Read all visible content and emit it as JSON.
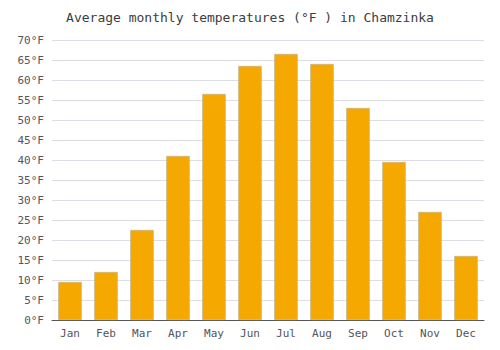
{
  "chart_data": {
    "type": "bar",
    "title": "Average monthly temperatures (°F ) in Chamzinka",
    "categories": [
      "Jan",
      "Feb",
      "Mar",
      "Apr",
      "May",
      "Jun",
      "Jul",
      "Aug",
      "Sep",
      "Oct",
      "Nov",
      "Dec"
    ],
    "values": [
      9.5,
      12,
      22.5,
      41,
      56.5,
      63.5,
      66.5,
      64,
      53,
      39.5,
      27,
      16
    ],
    "color": "#F5A800",
    "ylim": [
      0,
      70
    ],
    "yticks": [
      {
        "value": 0,
        "label": "0°F"
      },
      {
        "value": 5,
        "label": "5°F"
      },
      {
        "value": 10,
        "label": "10°F"
      },
      {
        "value": 15,
        "label": "15°F"
      },
      {
        "value": 20,
        "label": "20°F"
      },
      {
        "value": 25,
        "label": "25°F"
      },
      {
        "value": 30,
        "label": "30°F"
      },
      {
        "value": 35,
        "label": "35°F"
      },
      {
        "value": 40,
        "label": "40°F"
      },
      {
        "value": 45,
        "label": "45°F"
      },
      {
        "value": 50,
        "label": "50°F"
      },
      {
        "value": 55,
        "label": "55°F"
      },
      {
        "value": 60,
        "label": "60°F"
      },
      {
        "value": 65,
        "label": "65°F"
      },
      {
        "value": 70,
        "label": "70°F"
      }
    ],
    "grid": true
  }
}
